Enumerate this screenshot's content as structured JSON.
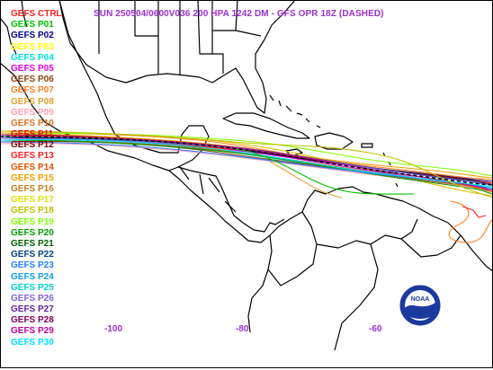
{
  "title": "SUN 250504/0600V036  200 HPA 1242 DM - GFS OPR 18Z (DASHED)",
  "colors": {
    "title": "#9a2fd0",
    "coast": "#000000",
    "background": "#ffffff"
  },
  "legend": [
    {
      "label": "GEFS CTRL",
      "color": "#ff2020"
    },
    {
      "label": "GEFS P01",
      "color": "#00c000"
    },
    {
      "label": "GEFS P02",
      "color": "#000090"
    },
    {
      "label": "GEFS P03",
      "color": "#ffff00"
    },
    {
      "label": "GEFS P04",
      "color": "#00e0e0"
    },
    {
      "label": "GEFS P05",
      "color": "#e000e0"
    },
    {
      "label": "GEFS P06",
      "color": "#8b4513"
    },
    {
      "label": "GEFS P07",
      "color": "#ff7f24"
    },
    {
      "label": "GEFS P08",
      "color": "#e0a030"
    },
    {
      "label": "GEFS P09",
      "color": "#ff9fb0"
    },
    {
      "label": "GEFS P10",
      "color": "#e07020"
    },
    {
      "label": "GEFS P11",
      "color": "#e01010"
    },
    {
      "label": "GEFS P12",
      "color": "#800000"
    },
    {
      "label": "GEFS P13",
      "color": "#ff2020"
    },
    {
      "label": "GEFS P14",
      "color": "#e05000"
    },
    {
      "label": "GEFS P15",
      "color": "#f0a000"
    },
    {
      "label": "GEFS P16",
      "color": "#c08020"
    },
    {
      "label": "GEFS P17",
      "color": "#e0e000"
    },
    {
      "label": "GEFS P18",
      "color": "#c0c000"
    },
    {
      "label": "GEFS P19",
      "color": "#80ff00"
    },
    {
      "label": "GEFS P20",
      "color": "#00a000"
    },
    {
      "label": "GEFS P21",
      "color": "#006000"
    },
    {
      "label": "GEFS P22",
      "color": "#004080"
    },
    {
      "label": "GEFS P23",
      "color": "#2080ff"
    },
    {
      "label": "GEFS P24",
      "color": "#10a0e0"
    },
    {
      "label": "GEFS P25",
      "color": "#00d0d0"
    },
    {
      "label": "GEFS P26",
      "color": "#8060e0"
    },
    {
      "label": "GEFS P27",
      "color": "#6020a0"
    },
    {
      "label": "GEFS P28",
      "color": "#800060"
    },
    {
      "label": "GEFS P29",
      "color": "#c000a0"
    },
    {
      "label": "GEFS P30",
      "color": "#00e0ff"
    }
  ],
  "longitude_labels": [
    "-100",
    "-80",
    "-60"
  ],
  "logo": {
    "text": "NOAA",
    "icon": "noaa-logo-icon"
  }
}
